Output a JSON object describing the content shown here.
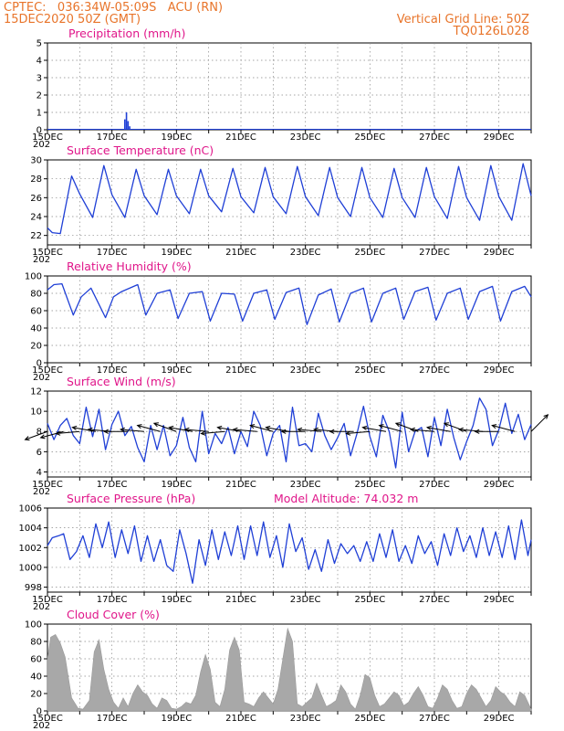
{
  "header": {
    "station": "CPTEC:   036:34W-05:09S   ACU (RN)",
    "run": "15DEC2020 50Z (GMT)",
    "grid_note": "Vertical Grid Line: 50Z",
    "code": "TQ0126L028"
  },
  "x_axis": {
    "labels": [
      "15DEC",
      "17DEC",
      "19DEC",
      "21DEC",
      "23DEC",
      "25DEC",
      "27DEC",
      "29DEC"
    ],
    "label_days": [
      0,
      2,
      4,
      6,
      8,
      10,
      12,
      14
    ],
    "year_fragment": "202",
    "range_days": [
      0,
      15
    ]
  },
  "colors": {
    "line": "#1f3fd6",
    "title": "#e0168a",
    "header": "#e8742a",
    "cloud": "#a8a8a8",
    "wind": "#000000"
  },
  "chart_data": [
    {
      "type": "bar",
      "title": "Precipitation (mm/h)",
      "ylim": [
        0,
        5
      ],
      "yticks": [
        0,
        1,
        2,
        3,
        4,
        5
      ],
      "grid": true,
      "points": [
        [
          2.4,
          0.6
        ],
        [
          2.45,
          1.0
        ],
        [
          2.5,
          0.5
        ],
        [
          2.55,
          0.2
        ],
        [
          4.6,
          0.04
        ],
        [
          6.0,
          0.04
        ],
        [
          8.4,
          0.03
        ],
        [
          10.5,
          0.03
        ],
        [
          12.2,
          0.05
        ],
        [
          13.3,
          0.04
        ],
        [
          14.4,
          0.04
        ]
      ]
    },
    {
      "type": "line",
      "title": "Surface Temperature (nC)",
      "ylim": [
        21,
        30
      ],
      "yticks": [
        22,
        24,
        26,
        28,
        30
      ],
      "grid": true,
      "x": [
        0,
        0.15,
        0.4,
        0.75,
        1.0,
        1.4,
        1.75,
        2.0,
        2.4,
        2.75,
        3.0,
        3.4,
        3.75,
        4.0,
        4.4,
        4.75,
        5.0,
        5.4,
        5.75,
        6.0,
        6.4,
        6.75,
        7.0,
        7.4,
        7.75,
        8.0,
        8.4,
        8.75,
        9.0,
        9.4,
        9.75,
        10.0,
        10.4,
        10.75,
        11.0,
        11.4,
        11.75,
        12.0,
        12.4,
        12.75,
        13.0,
        13.4,
        13.75,
        14.0,
        14.4,
        14.75,
        15.0
      ],
      "y": [
        22.8,
        22.3,
        22.2,
        28.3,
        26.4,
        23.9,
        29.4,
        26.3,
        23.9,
        29.0,
        26.2,
        24.2,
        29.0,
        26.2,
        24.3,
        29.0,
        26.2,
        24.5,
        29.1,
        26.1,
        24.4,
        29.2,
        26.1,
        24.3,
        29.3,
        26.1,
        24.1,
        29.2,
        26.0,
        24.0,
        29.2,
        26.0,
        23.9,
        29.1,
        26.0,
        23.9,
        29.2,
        26.1,
        23.8,
        29.3,
        26.0,
        23.6,
        29.4,
        26.1,
        23.6,
        29.6,
        26.2
      ]
    },
    {
      "type": "line",
      "title": "Relative Humidity (%)",
      "ylim": [
        0,
        100
      ],
      "yticks": [
        0,
        20,
        40,
        60,
        80,
        100
      ],
      "grid": true,
      "x": [
        0,
        0.2,
        0.45,
        0.8,
        1.05,
        1.35,
        1.8,
        2.05,
        2.3,
        2.8,
        3.05,
        3.4,
        3.8,
        4.05,
        4.4,
        4.8,
        5.05,
        5.4,
        5.8,
        6.05,
        6.4,
        6.8,
        7.05,
        7.4,
        7.8,
        8.05,
        8.4,
        8.8,
        9.05,
        9.4,
        9.8,
        10.05,
        10.4,
        10.8,
        11.05,
        11.4,
        11.8,
        12.05,
        12.4,
        12.8,
        13.05,
        13.4,
        13.8,
        14.05,
        14.4,
        14.8,
        15.0
      ],
      "y": [
        84,
        90,
        91,
        55,
        76,
        86,
        52,
        76,
        82,
        90,
        55,
        80,
        84,
        51,
        80,
        82,
        48,
        80,
        79,
        48,
        80,
        84,
        50,
        81,
        86,
        44,
        78,
        85,
        47,
        80,
        86,
        47,
        80,
        86,
        50,
        82,
        87,
        49,
        80,
        86,
        50,
        82,
        88,
        48,
        82,
        88,
        76
      ]
    },
    {
      "type": "line",
      "title": "Surface Wind (m/s)",
      "ylim": [
        3.5,
        12
      ],
      "yticks": [
        4,
        6,
        8,
        10,
        12
      ],
      "grid": true,
      "x": [
        0,
        0.2,
        0.4,
        0.6,
        0.8,
        1.0,
        1.2,
        1.4,
        1.6,
        1.8,
        2.0,
        2.2,
        2.4,
        2.6,
        2.8,
        3.0,
        3.2,
        3.4,
        3.6,
        3.8,
        4.0,
        4.2,
        4.4,
        4.6,
        4.8,
        5.0,
        5.2,
        5.4,
        5.6,
        5.8,
        6.0,
        6.2,
        6.4,
        6.6,
        6.8,
        7.0,
        7.2,
        7.4,
        7.6,
        7.8,
        8.0,
        8.2,
        8.4,
        8.6,
        8.8,
        9.0,
        9.2,
        9.4,
        9.6,
        9.8,
        10.0,
        10.2,
        10.4,
        10.6,
        10.8,
        11.0,
        11.2,
        11.4,
        11.6,
        11.8,
        12.0,
        12.2,
        12.4,
        12.6,
        12.8,
        13.0,
        13.2,
        13.4,
        13.6,
        13.8,
        14.0,
        14.2,
        14.4,
        14.6,
        14.8,
        15.0
      ],
      "y": [
        8.8,
        7.2,
        8.6,
        9.3,
        7.6,
        6.8,
        10.4,
        7.5,
        10.2,
        6.2,
        8.7,
        10.0,
        7.6,
        8.5,
        6.4,
        5.0,
        8.6,
        6.2,
        8.6,
        5.6,
        6.6,
        9.4,
        6.4,
        5.0,
        10.0,
        5.8,
        7.8,
        6.8,
        8.4,
        5.8,
        8.0,
        6.5,
        10.0,
        8.6,
        5.6,
        7.8,
        8.6,
        5.0,
        10.4,
        6.6,
        6.8,
        6.0,
        9.8,
        7.6,
        6.2,
        7.4,
        8.8,
        5.6,
        7.8,
        10.5,
        7.5,
        5.5,
        9.6,
        8.0,
        4.4,
        9.9,
        6.0,
        8.0,
        8.4,
        5.5,
        9.4,
        6.6,
        10.2,
        7.4,
        5.2,
        7.0,
        8.6,
        11.3,
        10.2,
        6.6,
        8.2,
        10.8,
        7.8,
        9.7,
        7.2,
        8.7
      ],
      "vector_spacing_days": 0.5,
      "vectors_deg": [
        200,
        195,
        185,
        170,
        175,
        180,
        175,
        165,
        160,
        170,
        175,
        185,
        170,
        175,
        165,
        170,
        180,
        175,
        175,
        180,
        185,
        170,
        165,
        160,
        175,
        170,
        160,
        175,
        180,
        165,
        45
      ]
    },
    {
      "type": "line",
      "title": "Surface Pressure (hPa)",
      "annotation": "Model Altitude: 74.032 m",
      "ylim": [
        997.5,
        1006
      ],
      "yticks": [
        998,
        1000,
        1002,
        1004,
        1006
      ],
      "grid": true,
      "x": [
        0,
        0.15,
        0.35,
        0.5,
        0.7,
        0.9,
        1.1,
        1.3,
        1.5,
        1.7,
        1.9,
        2.1,
        2.3,
        2.5,
        2.7,
        2.9,
        3.1,
        3.3,
        3.5,
        3.7,
        3.9,
        4.1,
        4.3,
        4.5,
        4.7,
        4.9,
        5.1,
        5.3,
        5.5,
        5.7,
        5.9,
        6.1,
        6.3,
        6.5,
        6.7,
        6.9,
        7.1,
        7.3,
        7.5,
        7.7,
        7.9,
        8.1,
        8.3,
        8.5,
        8.7,
        8.9,
        9.1,
        9.3,
        9.5,
        9.7,
        9.9,
        10.1,
        10.3,
        10.5,
        10.7,
        10.9,
        11.1,
        11.3,
        11.5,
        11.7,
        11.9,
        12.1,
        12.3,
        12.5,
        12.7,
        12.9,
        13.1,
        13.3,
        13.5,
        13.7,
        13.9,
        14.1,
        14.3,
        14.5,
        14.7,
        14.9,
        15.0
      ],
      "y": [
        1002.2,
        1003.0,
        1003.2,
        1003.4,
        1000.8,
        1001.6,
        1003.2,
        1001.0,
        1004.4,
        1002.0,
        1004.6,
        1001.0,
        1003.8,
        1001.4,
        1004.2,
        1000.6,
        1003.2,
        1000.6,
        1002.8,
        1000.2,
        999.6,
        1003.8,
        1001.4,
        998.4,
        1002.8,
        1000.2,
        1003.8,
        1000.8,
        1003.6,
        1001.2,
        1004.2,
        1000.8,
        1004.2,
        1001.2,
        1004.6,
        1001.0,
        1003.2,
        1000.0,
        1004.4,
        1001.6,
        1003.0,
        999.8,
        1001.8,
        999.6,
        1002.8,
        1000.4,
        1002.4,
        1001.4,
        1002.2,
        1000.6,
        1002.6,
        1000.6,
        1003.4,
        1001.0,
        1003.8,
        1000.6,
        1002.2,
        1000.4,
        1003.2,
        1001.4,
        1002.6,
        1000.2,
        1003.4,
        1001.2,
        1004.0,
        1001.6,
        1003.2,
        1001.0,
        1004.0,
        1001.2,
        1003.6,
        1001.0,
        1004.2,
        1000.8,
        1004.8,
        1001.2,
        1002.8
      ]
    },
    {
      "type": "area",
      "title": "Cloud Cover (%)",
      "ylim": [
        0,
        100
      ],
      "yticks": [
        0,
        20,
        40,
        60,
        80,
        100
      ],
      "grid": true,
      "x": [
        0,
        0.1,
        0.25,
        0.4,
        0.55,
        0.75,
        0.95,
        1.1,
        1.3,
        1.45,
        1.6,
        1.75,
        1.9,
        2.05,
        2.2,
        2.35,
        2.5,
        2.65,
        2.8,
        2.95,
        3.1,
        3.25,
        3.4,
        3.55,
        3.7,
        3.85,
        4.0,
        4.15,
        4.3,
        4.45,
        4.6,
        4.75,
        4.9,
        5.05,
        5.2,
        5.35,
        5.5,
        5.65,
        5.8,
        5.95,
        6.1,
        6.25,
        6.4,
        6.55,
        6.7,
        6.85,
        7.0,
        7.15,
        7.3,
        7.45,
        7.6,
        7.75,
        7.9,
        8.05,
        8.2,
        8.35,
        8.5,
        8.65,
        8.8,
        8.95,
        9.1,
        9.25,
        9.4,
        9.55,
        9.7,
        9.85,
        10.0,
        10.15,
        10.3,
        10.45,
        10.6,
        10.75,
        10.9,
        11.05,
        11.2,
        11.35,
        11.5,
        11.65,
        11.8,
        11.95,
        12.1,
        12.25,
        12.4,
        12.55,
        12.7,
        12.85,
        13.0,
        13.15,
        13.3,
        13.45,
        13.6,
        13.75,
        13.9,
        14.05,
        14.2,
        14.35,
        14.5,
        14.65,
        14.8,
        15.0
      ],
      "y": [
        60,
        85,
        88,
        78,
        62,
        15,
        3,
        2,
        12,
        68,
        82,
        48,
        25,
        10,
        3,
        15,
        5,
        20,
        30,
        22,
        18,
        8,
        3,
        15,
        12,
        3,
        2,
        5,
        10,
        8,
        18,
        45,
        65,
        48,
        10,
        5,
        25,
        70,
        85,
        70,
        10,
        8,
        5,
        15,
        22,
        15,
        8,
        25,
        60,
        95,
        80,
        8,
        5,
        10,
        15,
        32,
        18,
        5,
        8,
        12,
        30,
        22,
        8,
        2,
        18,
        42,
        38,
        18,
        5,
        8,
        15,
        22,
        18,
        6,
        10,
        20,
        28,
        18,
        5,
        3,
        15,
        30,
        25,
        12,
        3,
        5,
        20,
        30,
        25,
        15,
        5,
        12,
        28,
        22,
        18,
        10,
        5,
        22,
        18,
        2
      ]
    }
  ]
}
